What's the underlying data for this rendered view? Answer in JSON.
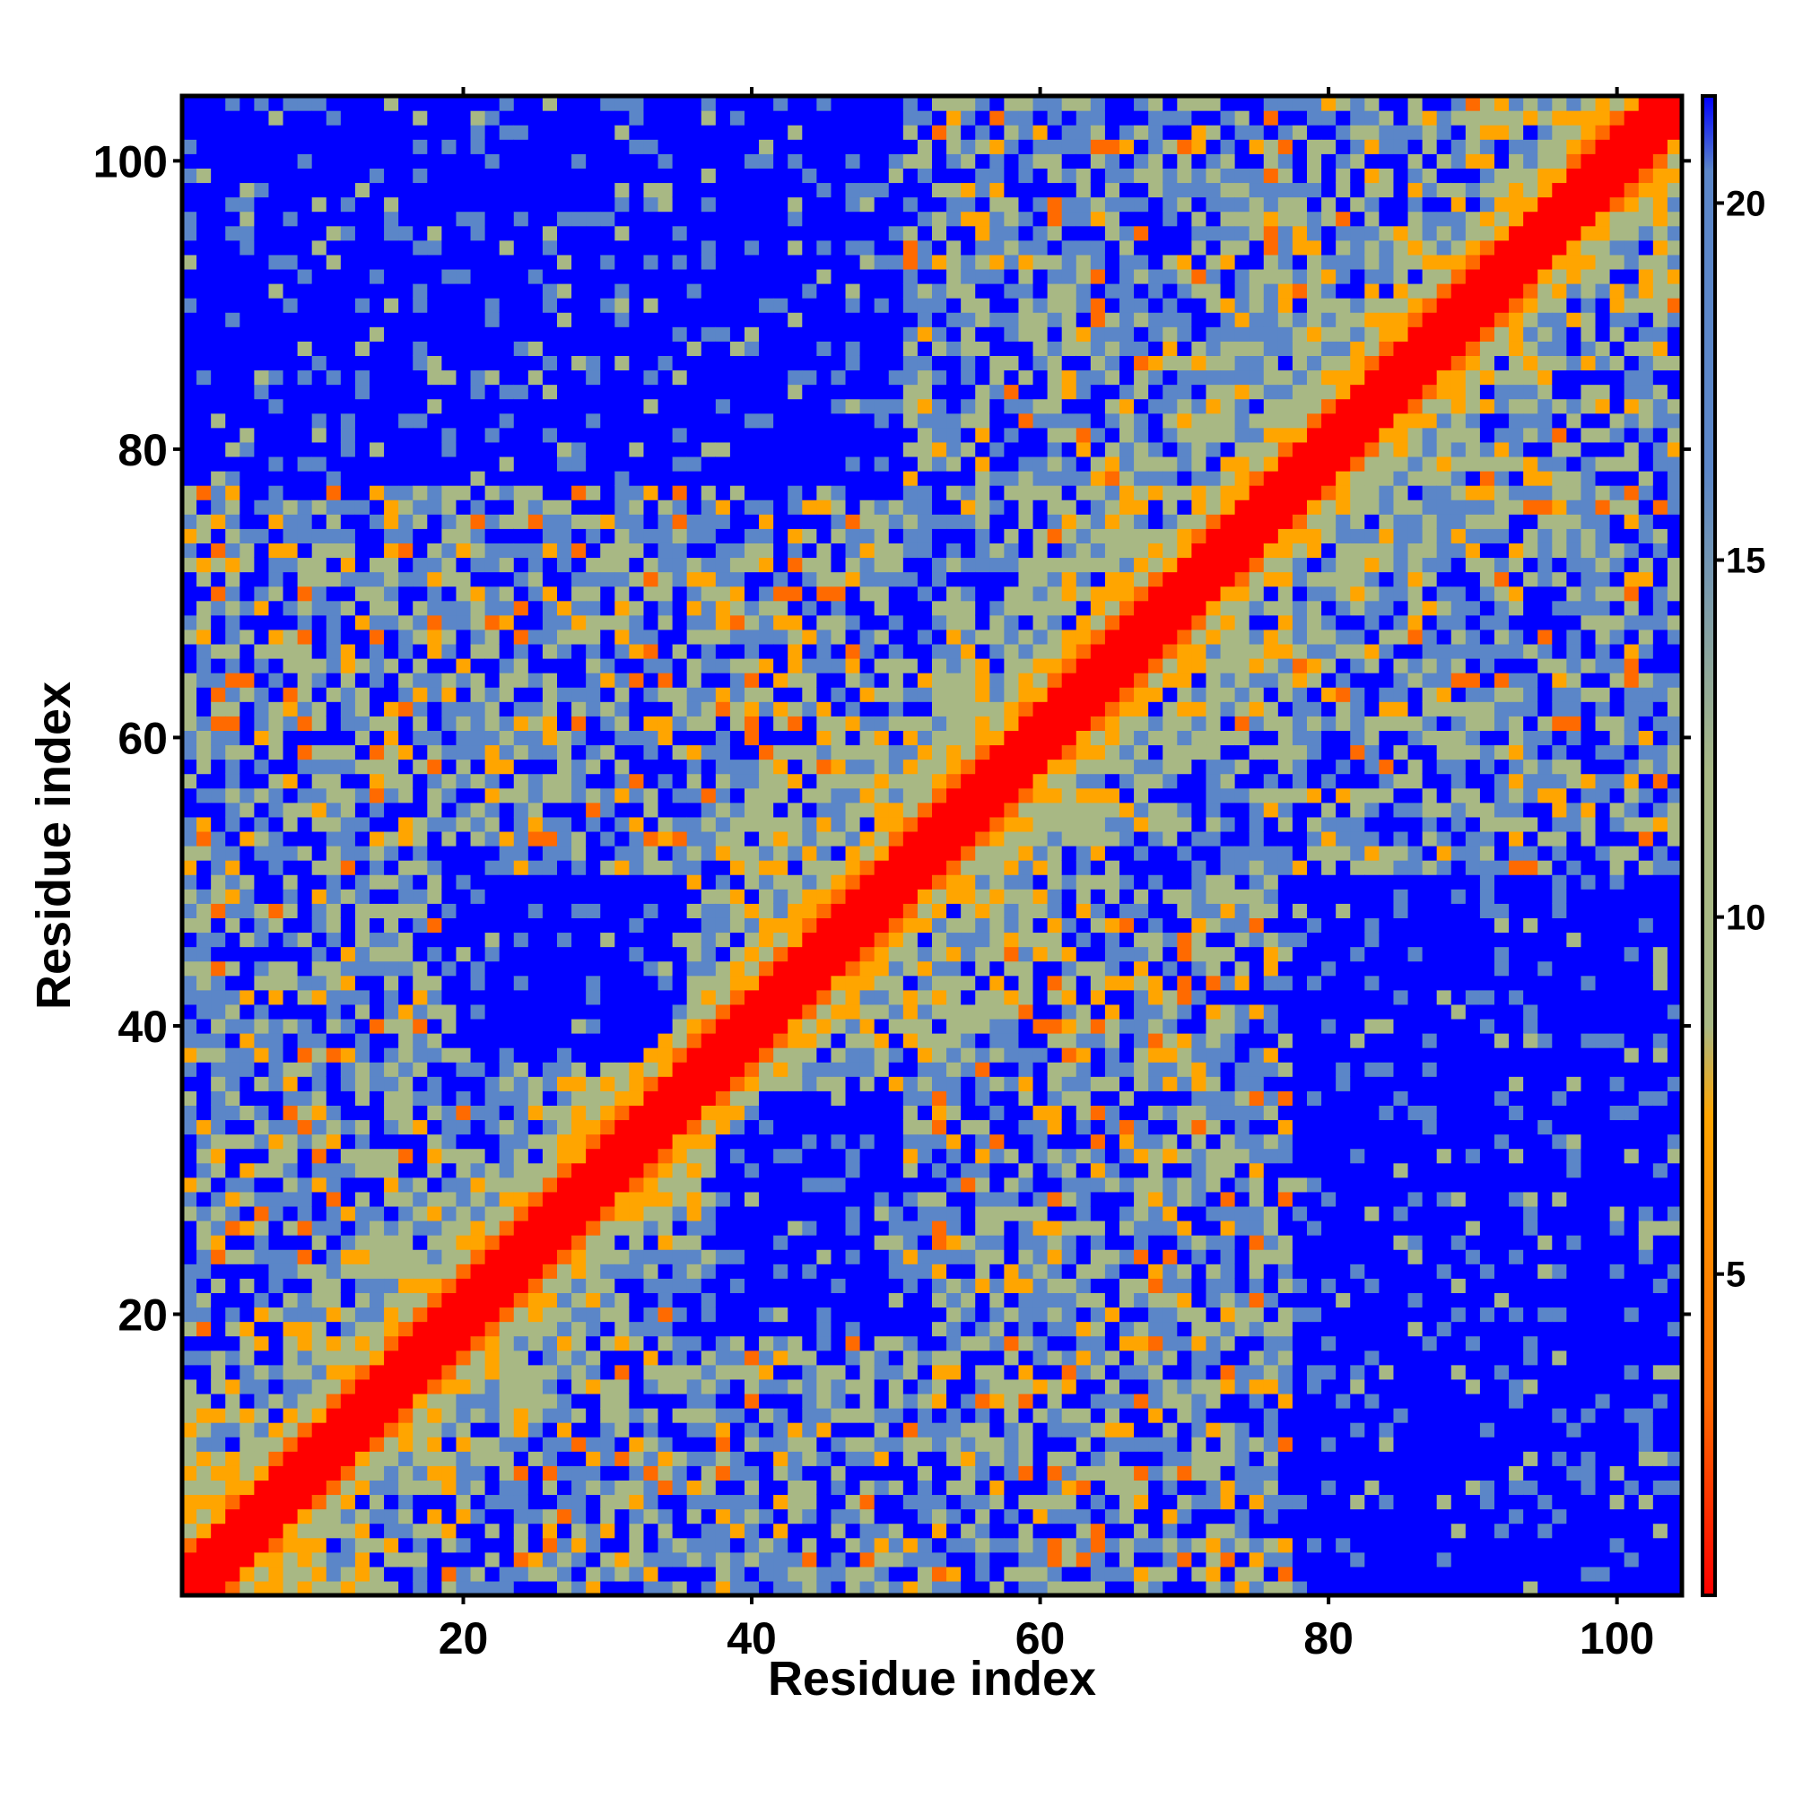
{
  "chart_data": {
    "type": "heatmap",
    "title": "",
    "xlabel": "Residue index",
    "ylabel": "Residue index",
    "n_residues": 104,
    "xlim": [
      0.5,
      104.5
    ],
    "ylim": [
      0.5,
      104.5
    ],
    "x_ticks": [
      20,
      40,
      60,
      80,
      100
    ],
    "y_ticks": [
      20,
      40,
      60,
      80,
      100
    ],
    "x_tick_labels": [
      "20",
      "40",
      "60",
      "80",
      "100"
    ],
    "y_tick_labels": [
      "20",
      "40",
      "60",
      "80",
      "100"
    ],
    "grid": false,
    "legend": "colorbar right",
    "colorbar": {
      "range": [
        0.5,
        21.5
      ],
      "ticks": [
        5,
        10,
        15,
        20
      ],
      "tick_labels": [
        "5",
        "10",
        "15",
        "20"
      ],
      "colors": {
        "near": "#ff0000",
        "close": "#ff6a00",
        "mid": "#ffa500",
        "khaki": "#a8b884",
        "steel": "#5b86c8",
        "far": "#0000ff"
      }
    },
    "contact_features": [
      {
        "description": "diagonal band",
        "offset_range": [
          0,
          3
        ],
        "value_approx": 1
      },
      {
        "description": "N-terminal cross contact",
        "residues": [
          [
            3,
            8
          ],
          [
            1,
            10
          ]
        ],
        "value_approx": 6
      },
      {
        "description": "near-diagonal helix contacts",
        "offset_range": [
          3,
          6
        ],
        "value_approx": 6
      }
    ],
    "far_regions": [
      {
        "x": [
          78,
          104
        ],
        "y": [
          1,
          50
        ]
      },
      {
        "x": [
          1,
          50
        ],
        "y": [
          78,
          104
        ]
      },
      {
        "x": [
          38,
          50
        ],
        "y": [
          19,
          35
        ]
      },
      {
        "x": [
          19,
          35
        ],
        "y": [
          38,
          50
        ]
      }
    ]
  }
}
